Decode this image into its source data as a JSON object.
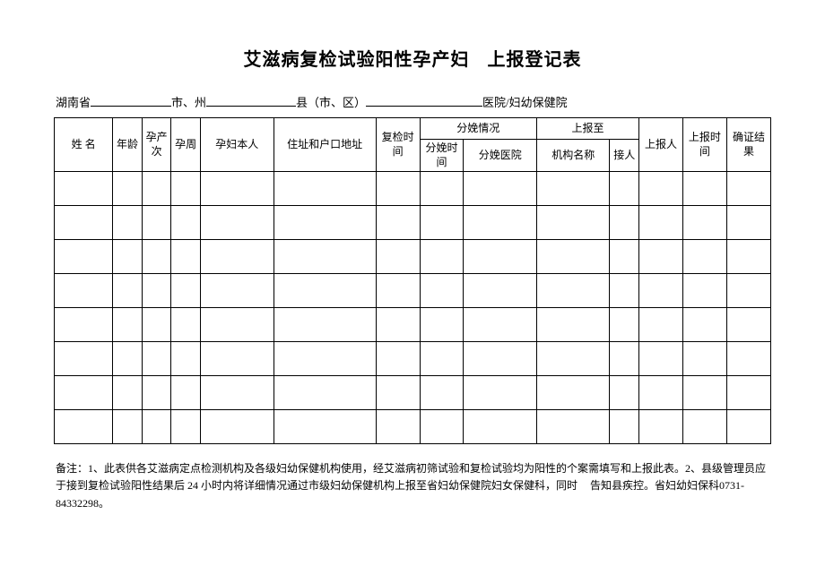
{
  "title_part1": "艾滋病复检试验阳性孕产妇",
  "title_part2": "上报登记表",
  "loc": {
    "province": "湖南省",
    "city_label": "市、州",
    "county_label": "县（市、区）",
    "hospital_label": "医院/妇幼保健院"
  },
  "cols": {
    "name": "姓 名",
    "age": "年龄",
    "pregnancy_count": "孕产次",
    "week": "孕周",
    "self": "孕妇本人",
    "address": "住址和户口地址",
    "recheck_time": "复检时间",
    "delivery_group": "分娩情况",
    "delivery_time": "分娩时间",
    "delivery_hospital": "分娩医院",
    "report_to_group": "上报至",
    "org_name": "机构名称",
    "receiver": "接人",
    "reporter": "上报人",
    "report_time": "上报时间",
    "confirm_result": "确证结果"
  },
  "note": "备注：1、此表供各艾滋病定点检测机构及各级妇幼保健机构使用，经艾滋病初筛试验和复检试验均为阳性的个案需填写和上报此表。2、县级管理员应于接到复检试验阳性结果后 24 小时内将详细情况通过市级妇幼保健机构上报至省妇幼保健院妇女保健科，同时",
  "note2": "告知县疾控。省妇幼妇保科0731-84332298。",
  "layout": {
    "row_count": 8,
    "col_widths_pct": [
      8,
      4,
      4,
      4,
      10,
      14,
      6,
      6,
      10,
      10,
      4,
      6,
      6,
      6
    ]
  }
}
